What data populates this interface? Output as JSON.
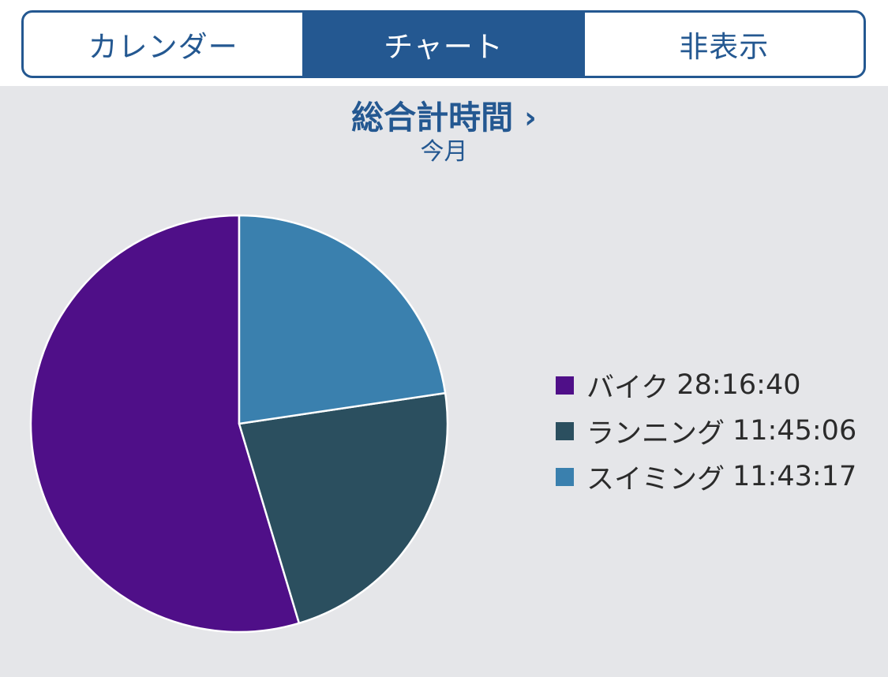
{
  "tabs": [
    {
      "label": "カレンダー",
      "active": false
    },
    {
      "label": "チャート",
      "active": true
    },
    {
      "label": "非表示",
      "active": false
    }
  ],
  "header": {
    "title": "総合計時間",
    "chevron": "›",
    "subtitle": "今月"
  },
  "colors": {
    "accent": "#245891",
    "panel_bg": "#e5e6e9"
  },
  "chart_data": {
    "type": "pie",
    "series": [
      {
        "name": "バイク",
        "value_label": "28:16:40",
        "value_seconds": 101800,
        "color": "#4f0f88"
      },
      {
        "name": "ランニング",
        "value_label": "11:45:06",
        "value_seconds": 42306,
        "color": "#2b4f5f"
      },
      {
        "name": "スイミング",
        "value_label": "11:43:17",
        "value_seconds": 42197,
        "color": "#3a80ae"
      }
    ],
    "legend_position": "right",
    "start_angle": "12 o'clock",
    "direction": "counterclockwise"
  }
}
